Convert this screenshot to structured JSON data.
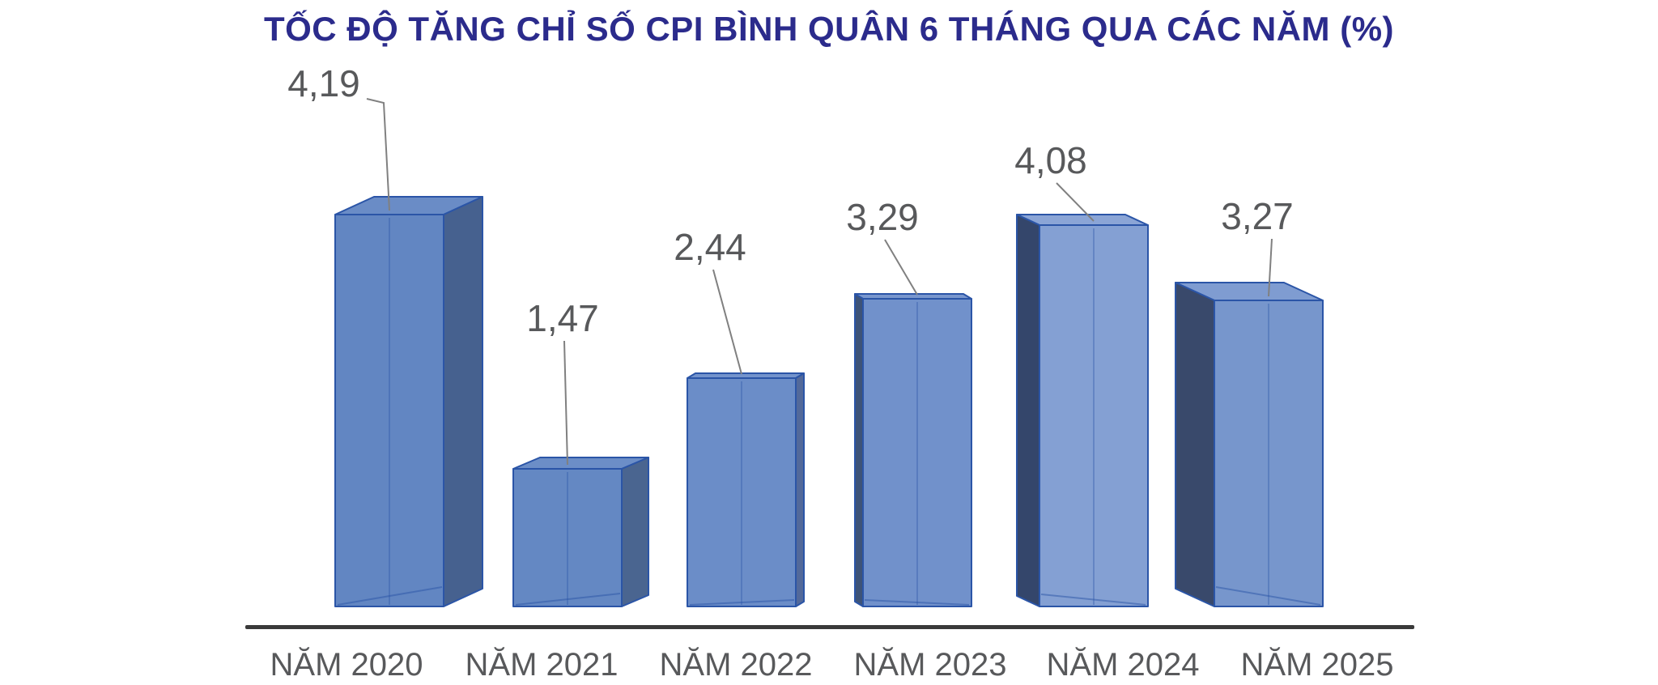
{
  "title": "TỐC ĐỘ TĂNG CHỈ SỐ CPI BÌNH QUÂN 6 THÁNG QUA CÁC NĂM (%)",
  "chart_data": {
    "type": "bar",
    "variant": "3d-perspective-column",
    "title": "TỐC ĐỘ TĂNG CHỈ SỐ CPI BÌNH QUÂN 6 THÁNG QUA CÁC NĂM (%)",
    "categories": [
      "NĂM 2020",
      "NĂM 2021",
      "NĂM 2022",
      "NĂM 2023",
      "NĂM 2024",
      "NĂM 2025"
    ],
    "values": [
      4.19,
      1.47,
      2.44,
      3.29,
      4.08,
      3.27
    ],
    "value_labels": [
      "4,19",
      "1,47",
      "2,44",
      "3,29",
      "4,08",
      "3,27"
    ],
    "xlabel": "",
    "ylabel": "",
    "ylim": [
      0,
      4.6
    ],
    "grid": false,
    "legend": null,
    "value_axis": "hidden",
    "data_labels": "outside with leader lines",
    "style": {
      "background": "#FFFFFF",
      "title_color": "#2B2B8C",
      "label_color": "#58595B",
      "leader_color": "#808080",
      "axis_color": "#3A3A3A",
      "edge_color": "#2B55A7",
      "bar_front_colors": [
        "#6286C2",
        "#6488C3",
        "#6B8DC8",
        "#7191CB",
        "#84A0D3",
        "#7796CC"
      ],
      "bar_top_colors": [
        "#6A8CC6",
        "#6C8EC7",
        "#7393CC",
        "#7997CE",
        "#8BA5D6",
        "#7F9CD1"
      ],
      "bar_side_colors": [
        "#46618F",
        "#4A6590",
        "#53699A",
        "#3D5378",
        "#34466B",
        "#39496B"
      ]
    }
  }
}
